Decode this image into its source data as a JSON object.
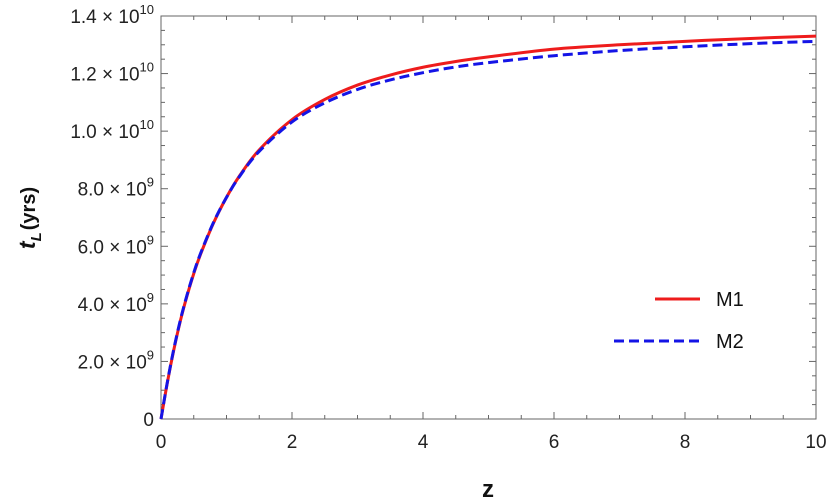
{
  "chart_data": {
    "type": "line",
    "xlabel": "z",
    "ylabel": "t_L (yrs)",
    "ylabel_main": "t",
    "ylabel_sub": "L",
    "ylabel_unit": "(yrs)",
    "xlim": [
      0,
      10
    ],
    "ylim": [
      0,
      14000000000
    ],
    "x_ticks": [
      {
        "value": 0,
        "label": "0"
      },
      {
        "value": 2,
        "label": "2"
      },
      {
        "value": 4,
        "label": "4"
      },
      {
        "value": 6,
        "label": "6"
      },
      {
        "value": 8,
        "label": "8"
      },
      {
        "value": 10,
        "label": "10"
      }
    ],
    "y_ticks": [
      {
        "value": 0,
        "mantissa": "0",
        "exponent": ""
      },
      {
        "value": 2000000000,
        "mantissa": "2.0 × 10",
        "exponent": "9"
      },
      {
        "value": 4000000000,
        "mantissa": "4.0 × 10",
        "exponent": "9"
      },
      {
        "value": 6000000000,
        "mantissa": "6.0 × 10",
        "exponent": "9"
      },
      {
        "value": 8000000000,
        "mantissa": "8.0 × 10",
        "exponent": "9"
      },
      {
        "value": 10000000000,
        "mantissa": "1.0 × 10",
        "exponent": "10"
      },
      {
        "value": 12000000000,
        "mantissa": "1.2 × 10",
        "exponent": "10"
      },
      {
        "value": 14000000000,
        "mantissa": "1.4 × 10",
        "exponent": "10"
      }
    ],
    "grid": false,
    "legend_position": "right-middle",
    "series": [
      {
        "name": "M1",
        "color": "#ee1c1c",
        "style": "solid",
        "x": [
          0,
          0.1,
          0.2,
          0.3,
          0.4,
          0.5,
          0.6,
          0.8,
          1.0,
          1.2,
          1.5,
          2.0,
          2.5,
          3.0,
          3.5,
          4.0,
          4.5,
          5.0,
          6.0,
          7.0,
          8.0,
          9.0,
          10.0
        ],
        "y": [
          0,
          1300000000.0,
          2450000000.0,
          3450000000.0,
          4300000000.0,
          5050000000.0,
          5700000000.0,
          6800000000.0,
          7700000000.0,
          8450000000.0,
          9350000000.0,
          10400000000.0,
          11100000000.0,
          11600000000.0,
          11950000000.0,
          12220000000.0,
          12420000000.0,
          12580000000.0,
          12850000000.0,
          13000000000.0,
          13120000000.0,
          13220000000.0,
          13300000000.0
        ]
      },
      {
        "name": "M2",
        "color": "#1414e6",
        "style": "dashed",
        "x": [
          0,
          0.1,
          0.2,
          0.3,
          0.4,
          0.5,
          0.6,
          0.8,
          1.0,
          1.2,
          1.5,
          2.0,
          2.5,
          3.0,
          3.5,
          4.0,
          4.5,
          5.0,
          6.0,
          7.0,
          8.0,
          9.0,
          10.0
        ],
        "y": [
          0,
          1320000000.0,
          2480000000.0,
          3480000000.0,
          4330000000.0,
          5080000000.0,
          5730000000.0,
          6820000000.0,
          7700000000.0,
          8430000000.0,
          9300000000.0,
          10320000000.0,
          10980000000.0,
          11450000000.0,
          11780000000.0,
          12030000000.0,
          12230000000.0,
          12380000000.0,
          12620000000.0,
          12800000000.0,
          12930000000.0,
          13040000000.0,
          13120000000.0
        ]
      }
    ]
  }
}
